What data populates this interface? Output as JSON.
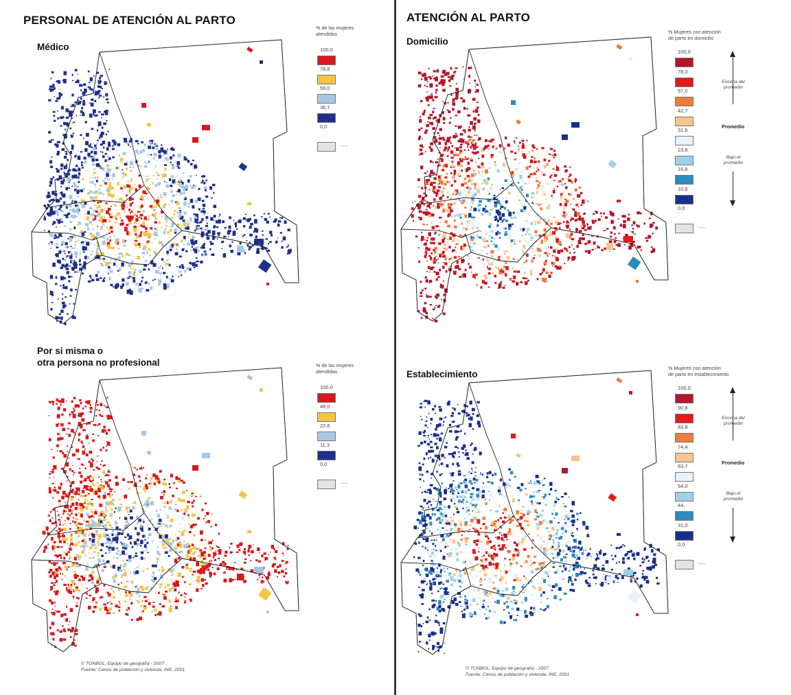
{
  "left_page": {
    "title": "PERSONAL DE ATENCIÓN AL  PARTO",
    "credits": "© TONBOL, Equipo de geografía - 2007\nFuente: Censo de población y vivienda, INE, 2001",
    "maps": [
      {
        "id": "medico",
        "title": "Médico",
        "legend": {
          "title": "% de las mujeres\natendidas",
          "values": [
            "100,0",
            "78,8",
            "59,0",
            "36,7",
            "0,0"
          ],
          "colors": [
            "#d7191c",
            "#f4c542",
            "#a6c8e6",
            "#1f2f8a"
          ],
          "nodata_color": "#e3e3e3",
          "nodata_label": "----"
        },
        "dominant": "red"
      },
      {
        "id": "por-si-misma",
        "title": "Por si misma o\notra persona no profesional",
        "legend": {
          "title": "% de las mujeres\natendidas",
          "values": [
            "100,0",
            "48,0",
            "22,6",
            "11,3",
            "0,0"
          ],
          "colors": [
            "#d7191c",
            "#f4c542",
            "#a6c8e6",
            "#1f2f8a"
          ],
          "nodata_color": "#e3e3e3",
          "nodata_label": "----"
        },
        "dominant": "blue"
      }
    ]
  },
  "right_page": {
    "title": "ATENCIÓN AL PARTO",
    "credits": "© TONBOL, Equipo de geografía - 2007\nFuente: Censo de población y vivienda, INE, 2001",
    "maps": [
      {
        "id": "domicilio",
        "title": "Domicilio",
        "legend": {
          "title": "% Mujeres con atención\nde parto en domicilio",
          "values": [
            "100,0",
            "78,3",
            "57,0",
            "42,7",
            "31,6",
            "23,8",
            "16,8",
            "10,6",
            "0,0"
          ],
          "colors": [
            "#b2182b",
            "#e31a1c",
            "#f07c3a",
            "#f8c58c",
            "#e6f3f8",
            "#9fd0e8",
            "#2b8cbe",
            "#1a2f8a"
          ],
          "nodata_color": "#e3e3e3",
          "nodata_label": "----",
          "above_label": "Encima del\npromedio",
          "average_label": "Promedio",
          "below_label": "Bajo el\npromedio"
        },
        "dominant": "blue"
      },
      {
        "id": "establecimiento",
        "title": "Establecimiento",
        "legend": {
          "title": "% Mujeres con atención\nde parto en establecimiento",
          "values": [
            "100,0",
            "90,8",
            "83,8",
            "74,4",
            "63,7",
            "54,0",
            "44,",
            "31,0",
            "0,0"
          ],
          "colors": [
            "#b2182b",
            "#e31a1c",
            "#f07c3a",
            "#f8c58c",
            "#e6f3f8",
            "#9fd0e8",
            "#2b8cbe",
            "#1a2f8a"
          ],
          "nodata_color": "#e3e3e3",
          "nodata_label": "----",
          "above_label": "Encima del\npromedio",
          "average_label": "Promedio",
          "below_label": "Bajo el\npromedio"
        },
        "dominant": "red"
      }
    ]
  }
}
